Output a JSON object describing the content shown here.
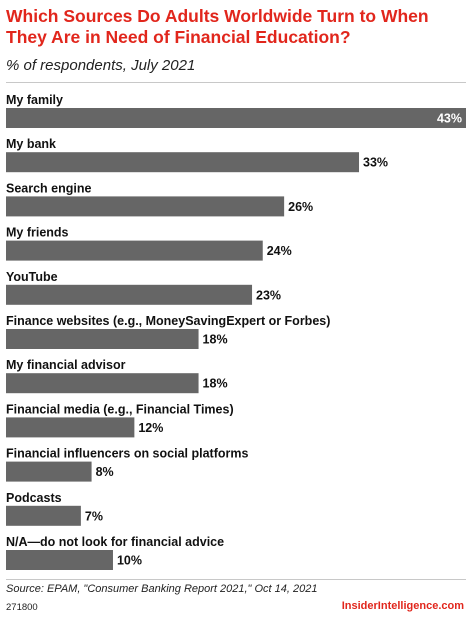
{
  "header": {
    "title": "Which Sources Do Adults Worldwide Turn to When They Are in Need of Financial Education?",
    "subtitle": "% of respondents, July 2021"
  },
  "footer": {
    "source": "Source: EPAM, \"Consumer Banking Report 2021,\" Oct 14, 2021",
    "chart_id": "271800",
    "brand": "InsiderIntelligence.com"
  },
  "colors": {
    "title": "#e1261c",
    "bar": "#666666",
    "brand": "#e1261c"
  },
  "chart_data": {
    "type": "bar",
    "orientation": "horizontal",
    "title": "Which Sources Do Adults Worldwide Turn to When They Are in Need of Financial Education?",
    "subtitle": "% of respondents, July 2021",
    "categories": [
      "My family",
      "My bank",
      "Search engine",
      "My friends",
      "YouTube",
      "Finance websites (e.g., MoneySavingExpert or Forbes)",
      "My financial advisor",
      "Financial media (e.g., Financial Times)",
      "Financial influencers on social platforms",
      "Podcasts",
      "N/A—do not look for financial advice"
    ],
    "values": [
      43,
      33,
      26,
      24,
      23,
      18,
      18,
      12,
      8,
      7,
      10
    ],
    "value_labels": [
      "43%",
      "33%",
      "26%",
      "24%",
      "23%",
      "18%",
      "18%",
      "12%",
      "8%",
      "7%",
      "10%"
    ],
    "xlim": [
      0,
      43
    ],
    "grid": false,
    "legend": "none"
  }
}
